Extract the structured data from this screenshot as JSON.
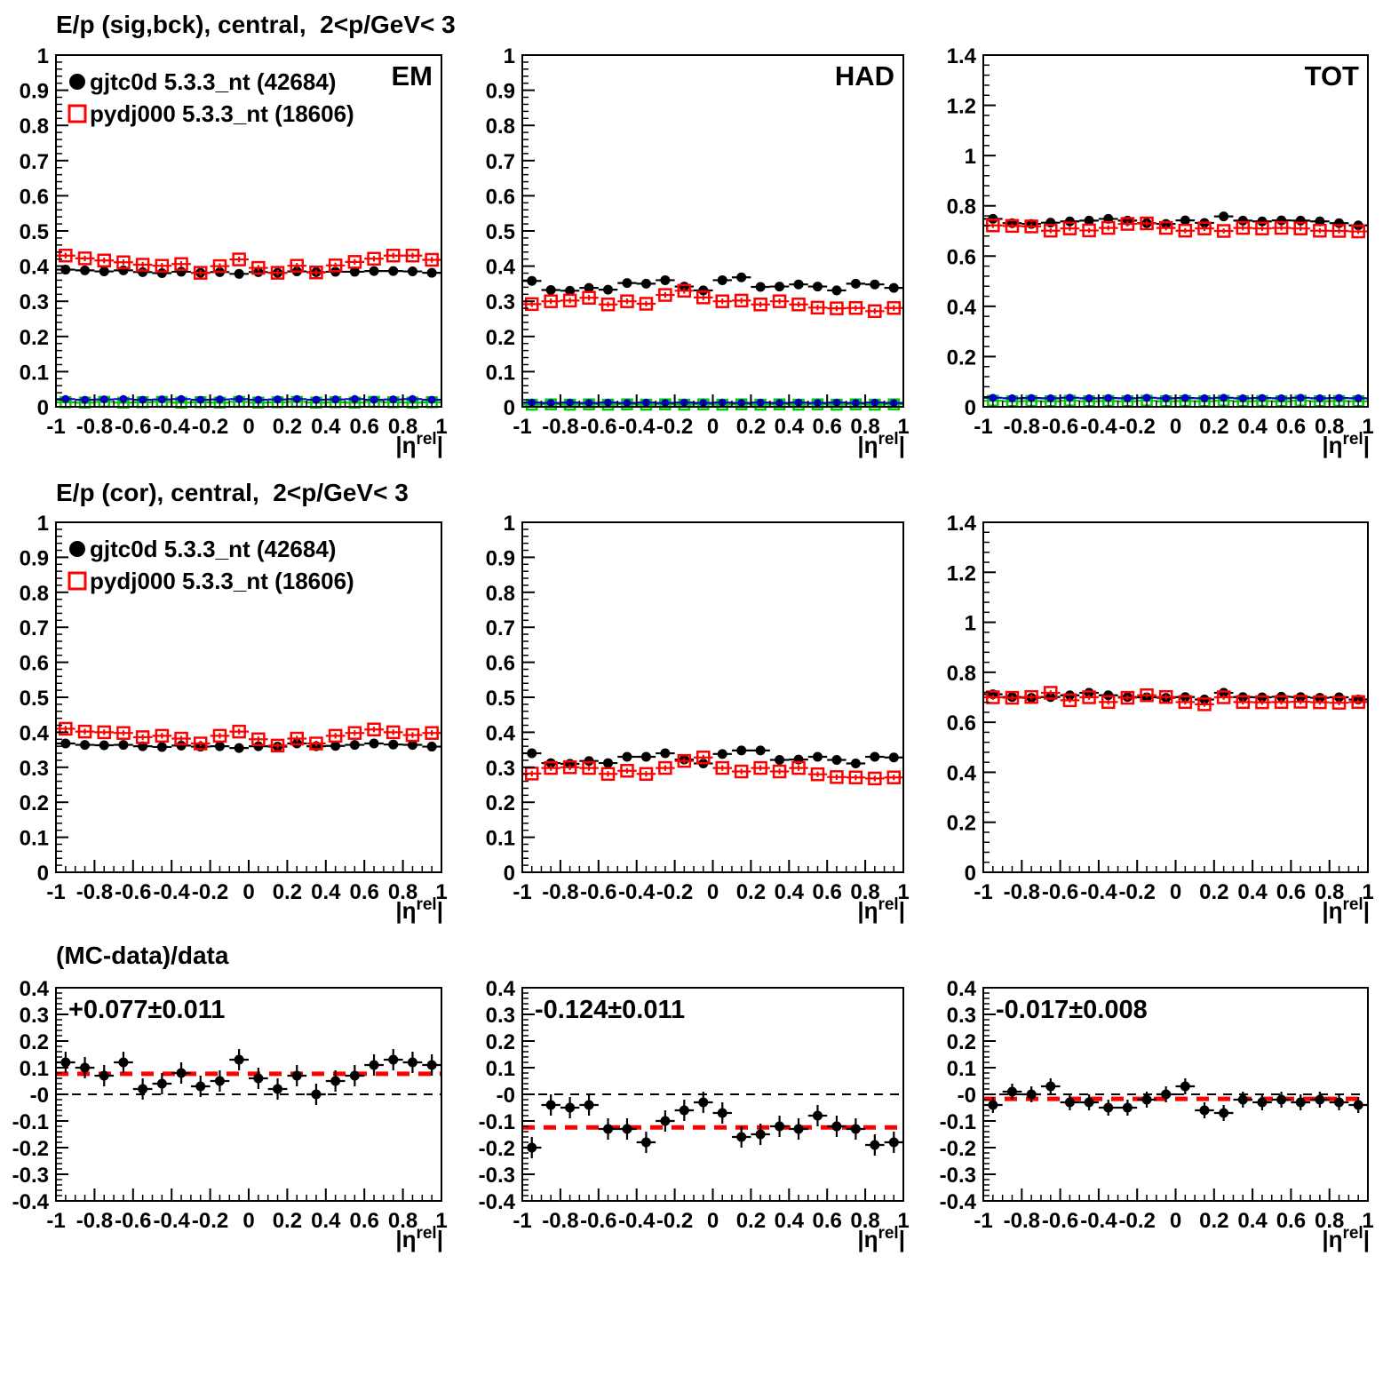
{
  "titles": {
    "row1": "E/p (sig,bck), central,  2<p/GeV< 3",
    "row2": "E/p (cor), central,  2<p/GeV< 3",
    "row3": "(MC-data)/data"
  },
  "legend": {
    "entries": [
      {
        "label": "gjtc0d 5.3.3_nt (42684)",
        "marker": "filled-circle",
        "color": "#000000"
      },
      {
        "label": "pydj000 5.3.3_nt (18606)",
        "marker": "open-square",
        "color": "#ff0000"
      }
    ]
  },
  "colors": {
    "data": "#000000",
    "mc": "#ff0000",
    "bkg_data": "#0000cc",
    "bkg_mc": "#00cc00",
    "fit": "#ff0000",
    "frame": "#000000"
  },
  "x_axis": {
    "min": -1,
    "max": 1,
    "major_ticks": [
      -1,
      -0.8,
      -0.6,
      -0.4,
      -0.2,
      0,
      0.2,
      0.4,
      0.6,
      0.8,
      1
    ],
    "minor_step": 0.05,
    "title": {
      "pre": "|η",
      "sup": "rel",
      "post": "|"
    }
  },
  "x_bins": [
    -0.95,
    -0.85,
    -0.75,
    -0.65,
    -0.55,
    -0.45,
    -0.35,
    -0.25,
    -0.15,
    -0.05,
    0.05,
    0.15,
    0.25,
    0.35,
    0.45,
    0.55,
    0.65,
    0.75,
    0.85,
    0.95
  ],
  "bin_half_width": 0.05,
  "chart_data": [
    {
      "id": "sigbck-em",
      "type": "scatter",
      "row": 0,
      "col": 0,
      "corner_label": "EM",
      "show_legend": true,
      "y_axis": {
        "min": 0,
        "max": 1,
        "major_step": 0.1,
        "minor_step": 0.02,
        "zero_label": "0"
      },
      "series": [
        {
          "name": "data",
          "marker": "circle",
          "color": "#000000",
          "size": 5.5,
          "yerr": 0.008,
          "values": [
            0.39,
            0.388,
            0.385,
            0.388,
            0.383,
            0.38,
            0.384,
            0.381,
            0.383,
            0.378,
            0.383,
            0.381,
            0.385,
            0.383,
            0.384,
            0.384,
            0.386,
            0.386,
            0.385,
            0.381
          ]
        },
        {
          "name": "mc",
          "marker": "square",
          "color": "#ff0000",
          "size": 6.5,
          "yerr": 0.008,
          "values": [
            0.43,
            0.422,
            0.416,
            0.411,
            0.404,
            0.401,
            0.406,
            0.381,
            0.4,
            0.419,
            0.395,
            0.381,
            0.401,
            0.382,
            0.402,
            0.412,
            0.421,
            0.43,
            0.43,
            0.418
          ]
        },
        {
          "name": "bkg-mc",
          "marker": "square",
          "color": "#00cc00",
          "size": 5.5,
          "yerr": 0.004,
          "values": [
            0.013,
            0.012,
            0.014,
            0.012,
            0.013,
            0.014,
            0.012,
            0.013,
            0.012,
            0.014,
            0.012,
            0.013,
            0.014,
            0.012,
            0.013,
            0.012,
            0.014,
            0.013,
            0.012,
            0.013
          ]
        },
        {
          "name": "bkg-data",
          "marker": "circle",
          "color": "#0000cc",
          "size": 4.5,
          "yerr": 0.004,
          "values": [
            0.022,
            0.02,
            0.021,
            0.022,
            0.02,
            0.021,
            0.022,
            0.02,
            0.021,
            0.022,
            0.02,
            0.021,
            0.022,
            0.02,
            0.021,
            0.022,
            0.02,
            0.021,
            0.022,
            0.02
          ]
        }
      ]
    },
    {
      "id": "sigbck-had",
      "type": "scatter",
      "row": 0,
      "col": 1,
      "corner_label": "HAD",
      "show_legend": false,
      "y_axis": {
        "min": 0,
        "max": 1,
        "major_step": 0.1,
        "minor_step": 0.02,
        "zero_label": "0"
      },
      "series": [
        {
          "name": "data",
          "marker": "circle",
          "color": "#000000",
          "size": 5.5,
          "yerr": 0.008,
          "values": [
            0.358,
            0.332,
            0.33,
            0.338,
            0.333,
            0.352,
            0.35,
            0.36,
            0.342,
            0.331,
            0.36,
            0.368,
            0.341,
            0.342,
            0.348,
            0.342,
            0.331,
            0.35,
            0.348,
            0.338
          ]
        },
        {
          "name": "mc",
          "marker": "square",
          "color": "#ff0000",
          "size": 6.5,
          "yerr": 0.008,
          "values": [
            0.292,
            0.3,
            0.302,
            0.31,
            0.291,
            0.3,
            0.293,
            0.318,
            0.33,
            0.311,
            0.3,
            0.302,
            0.291,
            0.3,
            0.291,
            0.282,
            0.28,
            0.281,
            0.272,
            0.281
          ]
        },
        {
          "name": "bkg-mc",
          "marker": "square",
          "color": "#00cc00",
          "size": 5.5,
          "yerr": 0.004,
          "values": [
            0.006,
            0.007,
            0.006,
            0.007,
            0.006,
            0.007,
            0.006,
            0.007,
            0.006,
            0.007,
            0.006,
            0.007,
            0.006,
            0.007,
            0.006,
            0.007,
            0.006,
            0.007,
            0.006,
            0.007
          ]
        },
        {
          "name": "bkg-data",
          "marker": "circle",
          "color": "#0000cc",
          "size": 4.5,
          "yerr": 0.004,
          "values": [
            0.012,
            0.011,
            0.012,
            0.011,
            0.012,
            0.011,
            0.012,
            0.011,
            0.012,
            0.011,
            0.012,
            0.011,
            0.012,
            0.011,
            0.012,
            0.011,
            0.012,
            0.011,
            0.012,
            0.011
          ]
        }
      ]
    },
    {
      "id": "sigbck-tot",
      "type": "scatter",
      "row": 0,
      "col": 2,
      "corner_label": "TOT",
      "show_legend": false,
      "y_axis": {
        "min": 0,
        "max": 1.4,
        "major_step": 0.2,
        "minor_step": 0.04,
        "zero_label": "0"
      },
      "series": [
        {
          "name": "data",
          "marker": "circle",
          "color": "#000000",
          "size": 5.5,
          "yerr": 0.01,
          "values": [
            0.748,
            0.731,
            0.728,
            0.733,
            0.738,
            0.741,
            0.748,
            0.741,
            0.731,
            0.728,
            0.742,
            0.732,
            0.758,
            0.741,
            0.738,
            0.742,
            0.741,
            0.738,
            0.731,
            0.722
          ]
        },
        {
          "name": "mc",
          "marker": "square",
          "color": "#ff0000",
          "size": 6.5,
          "yerr": 0.01,
          "values": [
            0.722,
            0.72,
            0.718,
            0.701,
            0.71,
            0.702,
            0.712,
            0.728,
            0.73,
            0.712,
            0.701,
            0.71,
            0.7,
            0.712,
            0.71,
            0.712,
            0.71,
            0.701,
            0.7,
            0.698
          ]
        },
        {
          "name": "bkg-mc",
          "marker": "square",
          "color": "#00cc00",
          "size": 5.5,
          "yerr": 0.004,
          "values": [
            0.024,
            0.022,
            0.023,
            0.022,
            0.024,
            0.022,
            0.023,
            0.022,
            0.024,
            0.022,
            0.023,
            0.022,
            0.024,
            0.022,
            0.023,
            0.022,
            0.024,
            0.022,
            0.023,
            0.022
          ]
        },
        {
          "name": "bkg-data",
          "marker": "circle",
          "color": "#0000cc",
          "size": 4.5,
          "yerr": 0.004,
          "values": [
            0.036,
            0.034,
            0.035,
            0.034,
            0.036,
            0.034,
            0.035,
            0.034,
            0.036,
            0.034,
            0.035,
            0.034,
            0.036,
            0.034,
            0.035,
            0.034,
            0.036,
            0.034,
            0.035,
            0.034
          ]
        }
      ]
    },
    {
      "id": "cor-em",
      "type": "scatter",
      "row": 1,
      "col": 0,
      "corner_label": "",
      "show_legend": true,
      "y_axis": {
        "min": 0,
        "max": 1,
        "major_step": 0.1,
        "minor_step": 0.02,
        "zero_label": "0"
      },
      "series": [
        {
          "name": "data",
          "marker": "circle",
          "color": "#000000",
          "size": 5.5,
          "yerr": 0.008,
          "values": [
            0.368,
            0.364,
            0.363,
            0.364,
            0.36,
            0.358,
            0.362,
            0.359,
            0.36,
            0.355,
            0.36,
            0.359,
            0.368,
            0.36,
            0.361,
            0.364,
            0.368,
            0.365,
            0.364,
            0.359
          ]
        },
        {
          "name": "mc",
          "marker": "square",
          "color": "#ff0000",
          "size": 6.5,
          "yerr": 0.008,
          "values": [
            0.41,
            0.402,
            0.4,
            0.398,
            0.386,
            0.39,
            0.382,
            0.368,
            0.39,
            0.402,
            0.38,
            0.362,
            0.382,
            0.368,
            0.39,
            0.398,
            0.408,
            0.4,
            0.392,
            0.398
          ]
        }
      ]
    },
    {
      "id": "cor-had",
      "type": "scatter",
      "row": 1,
      "col": 1,
      "corner_label": "",
      "show_legend": false,
      "y_axis": {
        "min": 0,
        "max": 1,
        "major_step": 0.1,
        "minor_step": 0.02,
        "zero_label": "0"
      },
      "series": [
        {
          "name": "data",
          "marker": "circle",
          "color": "#000000",
          "size": 5.5,
          "yerr": 0.008,
          "values": [
            0.34,
            0.312,
            0.31,
            0.318,
            0.312,
            0.33,
            0.33,
            0.34,
            0.322,
            0.311,
            0.338,
            0.348,
            0.348,
            0.321,
            0.322,
            0.33,
            0.321,
            0.311,
            0.33,
            0.328
          ]
        },
        {
          "name": "mc",
          "marker": "square",
          "color": "#ff0000",
          "size": 6.5,
          "yerr": 0.008,
          "values": [
            0.282,
            0.298,
            0.3,
            0.298,
            0.281,
            0.29,
            0.281,
            0.298,
            0.318,
            0.328,
            0.298,
            0.288,
            0.298,
            0.288,
            0.298,
            0.28,
            0.272,
            0.271,
            0.268,
            0.271
          ]
        }
      ]
    },
    {
      "id": "cor-tot",
      "type": "scatter",
      "row": 1,
      "col": 2,
      "corner_label": "",
      "show_legend": false,
      "y_axis": {
        "min": 0,
        "max": 1.4,
        "major_step": 0.2,
        "minor_step": 0.04,
        "zero_label": "0"
      },
      "series": [
        {
          "name": "data",
          "marker": "circle",
          "color": "#000000",
          "size": 5.5,
          "yerr": 0.01,
          "values": [
            0.712,
            0.701,
            0.698,
            0.701,
            0.708,
            0.718,
            0.708,
            0.701,
            0.7,
            0.698,
            0.701,
            0.691,
            0.718,
            0.701,
            0.7,
            0.702,
            0.701,
            0.698,
            0.7,
            0.691
          ]
        },
        {
          "name": "mc",
          "marker": "square",
          "color": "#ff0000",
          "size": 6.5,
          "yerr": 0.01,
          "values": [
            0.7,
            0.698,
            0.701,
            0.718,
            0.688,
            0.7,
            0.681,
            0.698,
            0.708,
            0.701,
            0.681,
            0.672,
            0.7,
            0.681,
            0.68,
            0.681,
            0.682,
            0.68,
            0.678,
            0.681
          ]
        }
      ]
    },
    {
      "id": "ratio-em",
      "type": "scatter",
      "row": 2,
      "col": 0,
      "corner_label": "",
      "show_legend": false,
      "zero_line": true,
      "fit": {
        "value": 0.077,
        "label": "+0.077±0.011"
      },
      "y_axis": {
        "min": -0.4,
        "max": 0.4,
        "major_step": 0.1,
        "minor_step": 0.02,
        "zero_label": "-0"
      },
      "series": [
        {
          "name": "ratio",
          "marker": "circle",
          "color": "#000000",
          "size": 5.5,
          "yerr": 0.04,
          "values": [
            0.12,
            0.1,
            0.07,
            0.12,
            0.02,
            0.04,
            0.08,
            0.03,
            0.05,
            0.13,
            0.06,
            0.02,
            0.07,
            0.0,
            0.05,
            0.07,
            0.11,
            0.13,
            0.12,
            0.11
          ]
        }
      ]
    },
    {
      "id": "ratio-had",
      "type": "scatter",
      "row": 2,
      "col": 1,
      "corner_label": "",
      "show_legend": false,
      "zero_line": true,
      "fit": {
        "value": -0.124,
        "label": "-0.124±0.011"
      },
      "y_axis": {
        "min": -0.4,
        "max": 0.4,
        "major_step": 0.1,
        "minor_step": 0.02,
        "zero_label": "-0"
      },
      "series": [
        {
          "name": "ratio",
          "marker": "circle",
          "color": "#000000",
          "size": 5.5,
          "yerr": 0.04,
          "values": [
            -0.2,
            -0.04,
            -0.05,
            -0.04,
            -0.13,
            -0.13,
            -0.18,
            -0.1,
            -0.06,
            -0.03,
            -0.07,
            -0.16,
            -0.15,
            -0.12,
            -0.13,
            -0.08,
            -0.12,
            -0.13,
            -0.19,
            -0.18
          ]
        }
      ]
    },
    {
      "id": "ratio-tot",
      "type": "scatter",
      "row": 2,
      "col": 2,
      "corner_label": "",
      "show_legend": false,
      "zero_line": true,
      "fit": {
        "value": -0.017,
        "label": "-0.017±0.008"
      },
      "y_axis": {
        "min": -0.4,
        "max": 0.4,
        "major_step": 0.1,
        "minor_step": 0.02,
        "zero_label": "-0"
      },
      "series": [
        {
          "name": "ratio",
          "marker": "circle",
          "color": "#000000",
          "size": 5.5,
          "yerr": 0.03,
          "values": [
            -0.04,
            0.01,
            0.0,
            0.03,
            -0.03,
            -0.03,
            -0.05,
            -0.05,
            -0.02,
            0.0,
            0.03,
            -0.06,
            -0.07,
            -0.02,
            -0.03,
            -0.02,
            -0.03,
            -0.02,
            -0.03,
            -0.04
          ]
        }
      ]
    }
  ]
}
